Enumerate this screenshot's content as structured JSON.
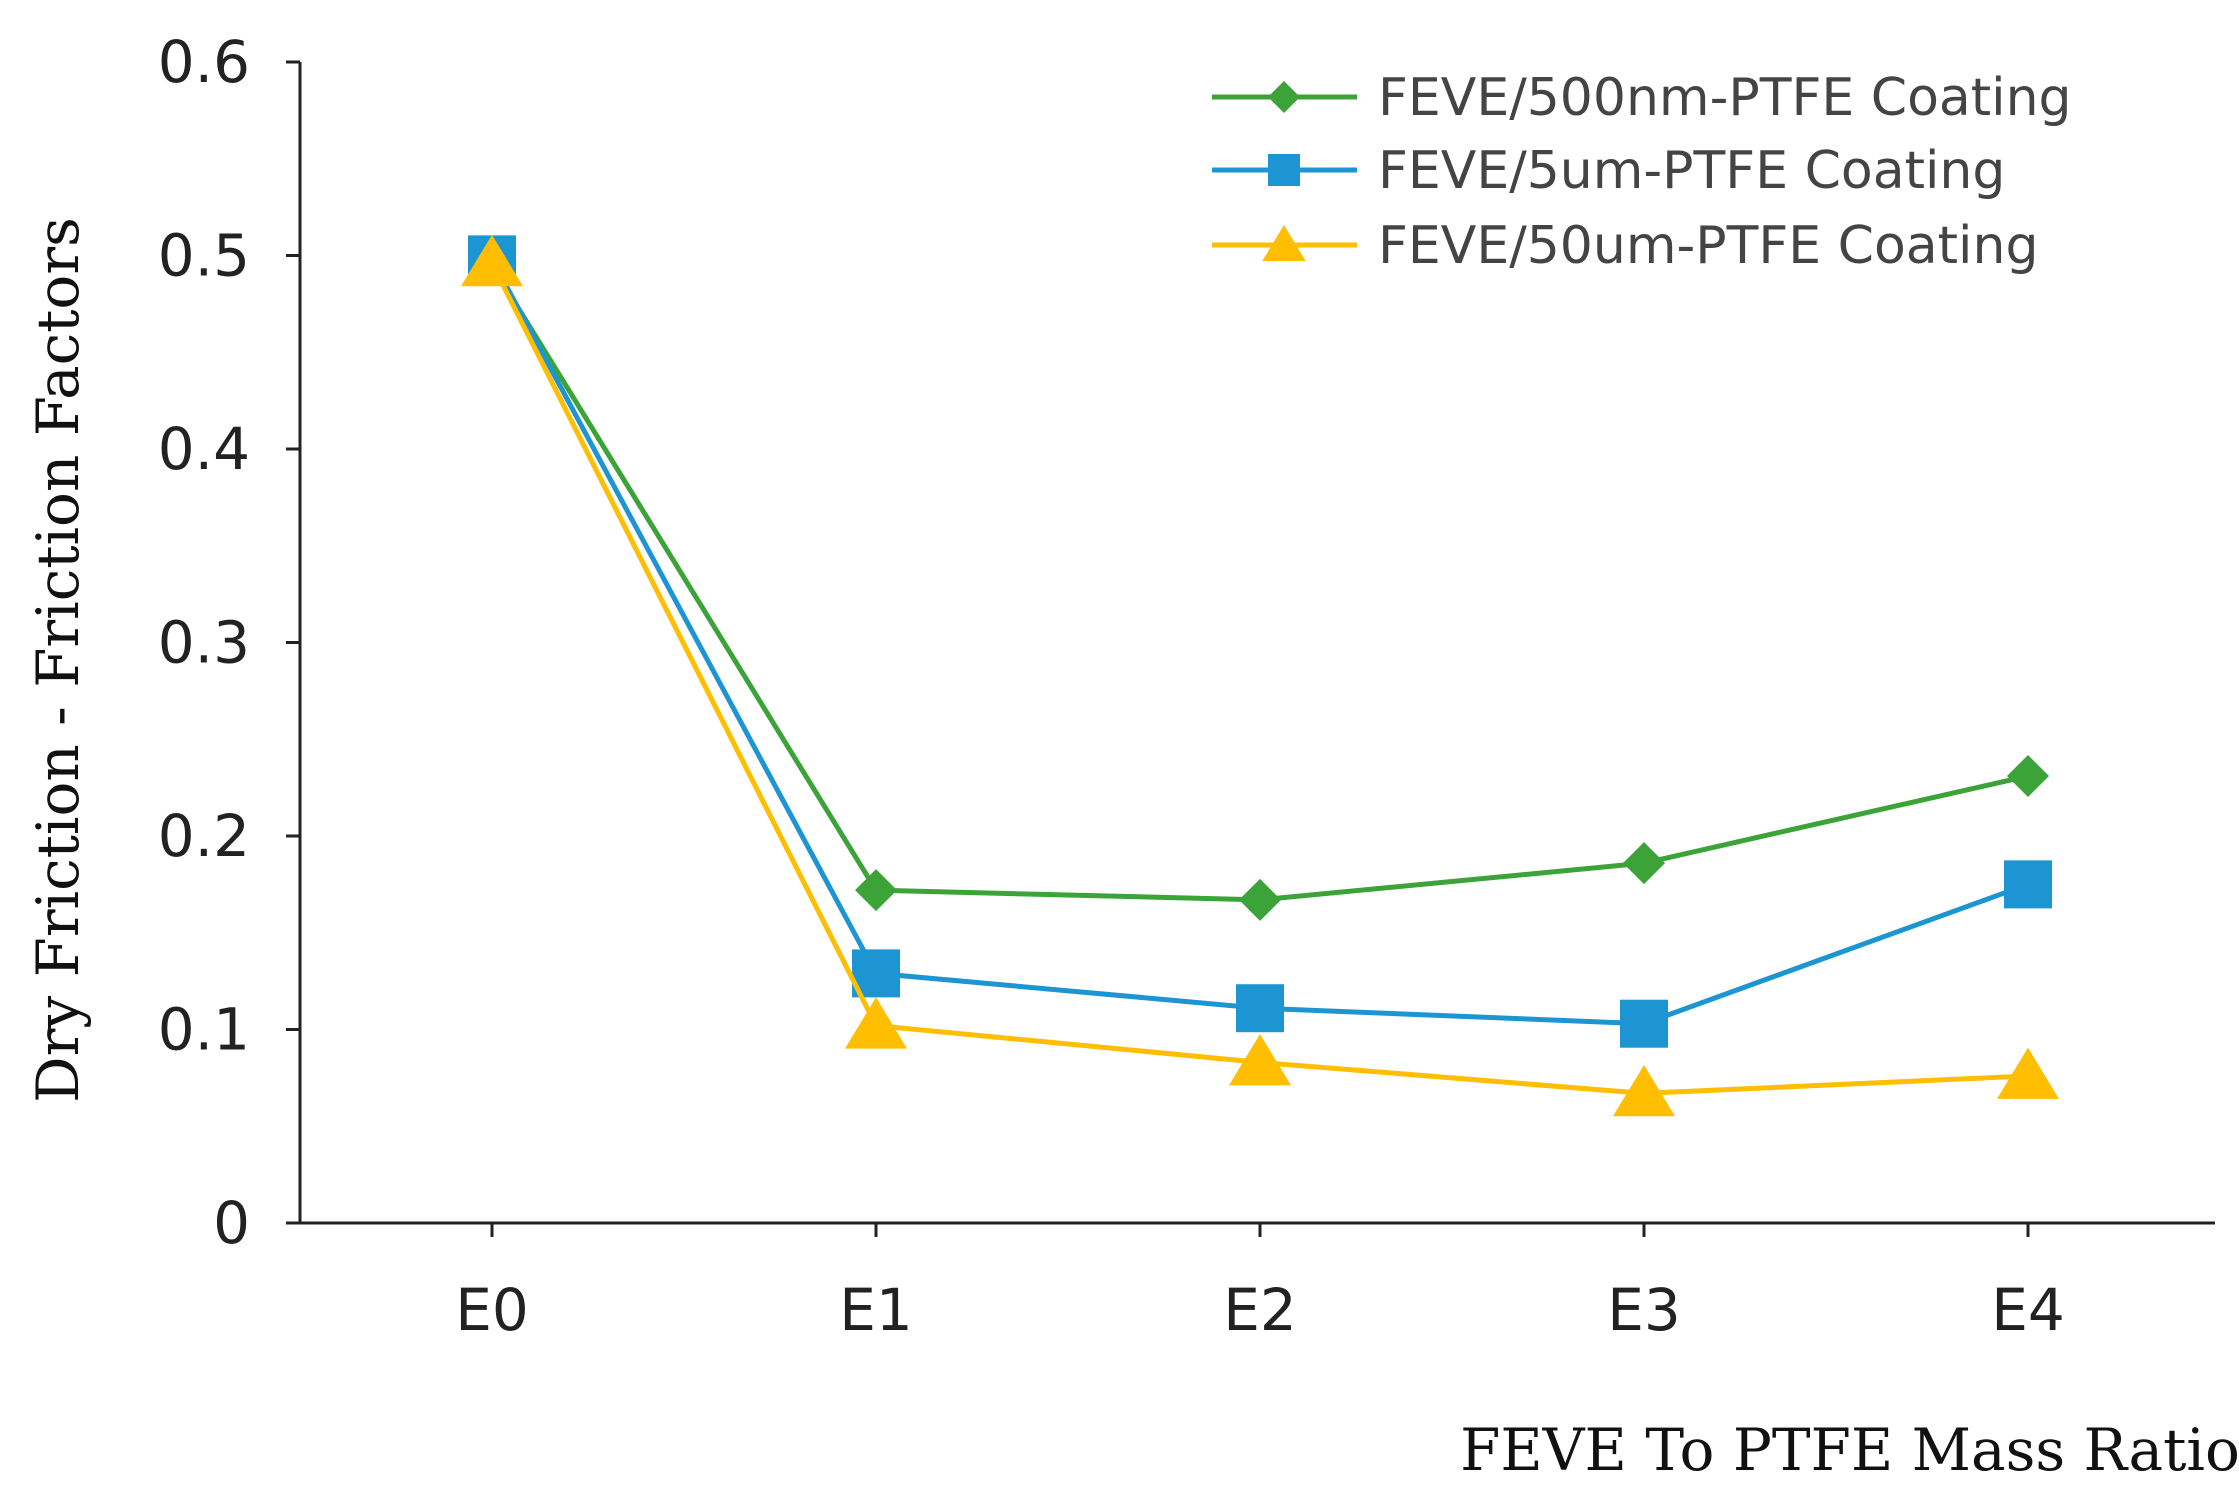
{
  "chart_data": {
    "type": "line",
    "title": "",
    "xlabel": "FEVE To PTFE Mass Ratio",
    "ylabel": "Dry Friction - Friction Factors",
    "categories": [
      "E0",
      "E1",
      "E2",
      "E3",
      "E4"
    ],
    "ylim": [
      0,
      0.6
    ],
    "yticks": [
      0,
      0.1,
      0.2,
      0.3,
      0.4,
      0.5,
      0.6
    ],
    "ytick_labels": [
      "0",
      "0.1",
      "0.2",
      "0.3",
      "0.4",
      "0.5",
      "0.6"
    ],
    "grid": false,
    "legend_position": "top-right",
    "series": [
      {
        "name": "FEVE/500nm-PTFE Coating",
        "marker": "diamond",
        "color": "#3BA337",
        "values": [
          0.495,
          0.172,
          0.167,
          0.186,
          0.231
        ]
      },
      {
        "name": "FEVE/5um-PTFE Coating",
        "marker": "square",
        "color": "#1E95D3",
        "values": [
          0.498,
          0.129,
          0.111,
          0.103,
          0.175
        ]
      },
      {
        "name": "FEVE/50um-PTFE Coating",
        "marker": "triangle",
        "color": "#FFBE00",
        "values": [
          0.496,
          0.102,
          0.083,
          0.067,
          0.076
        ]
      }
    ]
  }
}
